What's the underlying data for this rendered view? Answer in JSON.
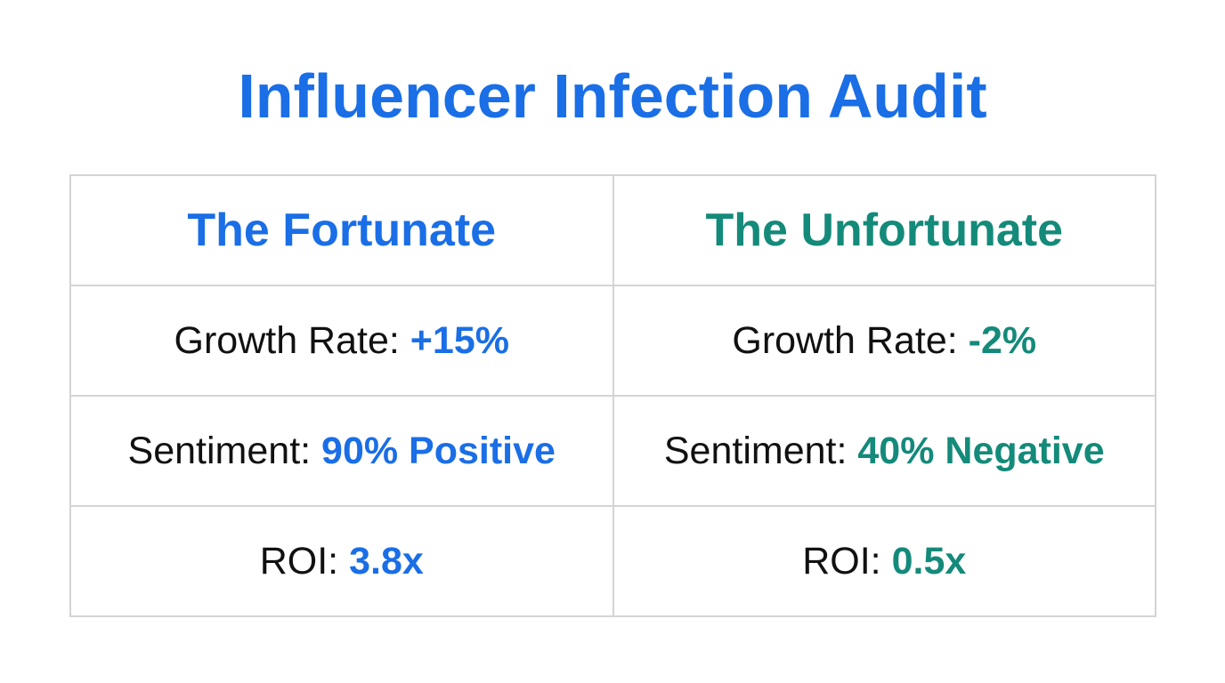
{
  "title": "Influencer Infection Audit",
  "colors": {
    "title": "#1a6ee6",
    "fortunate": "#1a6ee6",
    "unfortunate": "#148a7a",
    "label": "#111111",
    "border": "#d4d4d4"
  },
  "columns": [
    {
      "heading": "The Fortunate",
      "rows": [
        {
          "label": "Growth Rate:",
          "value": "+15%"
        },
        {
          "label": "Sentiment:",
          "value": "90% Positive"
        },
        {
          "label": "ROI:",
          "value": "3.8x"
        }
      ]
    },
    {
      "heading": "The Unfortunate",
      "rows": [
        {
          "label": "Growth Rate:",
          "value": "-2%"
        },
        {
          "label": "Sentiment:",
          "value": "40% Negative"
        },
        {
          "label": "ROI:",
          "value": "0.5x"
        }
      ]
    }
  ]
}
